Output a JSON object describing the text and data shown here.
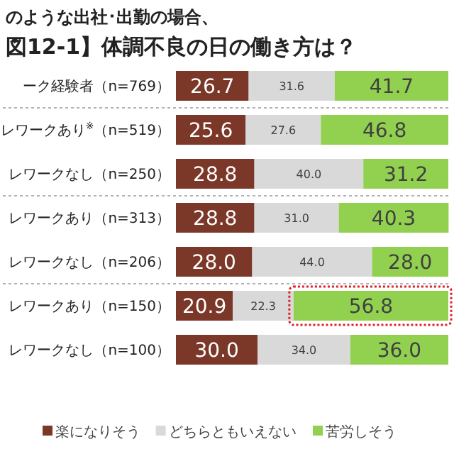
{
  "chart_data": {
    "type": "bar",
    "orientation": "horizontal",
    "stacked": true,
    "xlim": [
      0,
      100
    ],
    "title": "のような出社･出勤の場合、",
    "subtitle": "図12-1】体調不良の日の働き方は？",
    "categories": [
      "ーク経験者（n=769）",
      "レワークあり$^{※}$（n=519）",
      "レワークなし（n=250）",
      "レワークあり（n=313）",
      "レワークなし（n=206）",
      "レワークあり（n=150）",
      "レワークなし（n=100）"
    ],
    "series": [
      {
        "name": "楽になりそう",
        "color": "#7b3728",
        "values": [
          26.7,
          25.6,
          28.8,
          28.8,
          28.0,
          20.9,
          30.0
        ],
        "value_labels": [
          "26.7",
          "25.6",
          "28.8",
          "28.8",
          "28.0",
          "20.9",
          "30.0"
        ]
      },
      {
        "name": "どちらともいえない",
        "color": "#d9d9d9",
        "values": [
          31.6,
          27.6,
          40.0,
          31.0,
          44.0,
          22.3,
          34.0
        ],
        "value_labels": [
          "31.6",
          "27.6",
          "40.0",
          "31.0",
          "44.0",
          "22.3",
          "34.0"
        ]
      },
      {
        "name": "苦労しそう",
        "color": "#92d050",
        "values": [
          41.7,
          46.8,
          31.2,
          40.3,
          28.0,
          56.8,
          36.0
        ],
        "value_labels": [
          "41.7",
          "46.8",
          "31.2",
          "40.3",
          "28.0",
          "56.8",
          "36.0"
        ]
      }
    ],
    "legend": "bottom"
  }
}
